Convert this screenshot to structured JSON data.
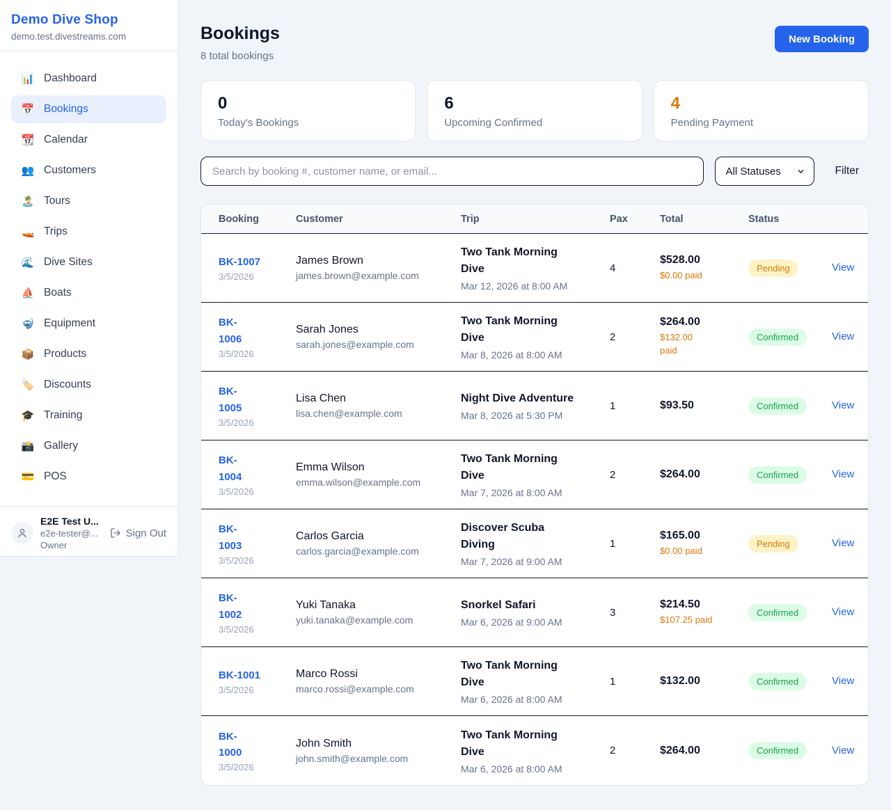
{
  "sidebar": {
    "shop_name": "Demo Dive Shop",
    "shop_domain": "demo.test.divestreams.com",
    "items": [
      {
        "name": "dashboard",
        "icon": "bar-chart-icon",
        "glyph": "📊",
        "label": "Dashboard",
        "active": false
      },
      {
        "name": "bookings",
        "icon": "calendar-icon",
        "glyph": "📅",
        "label": "Bookings",
        "active": true
      },
      {
        "name": "calendar",
        "icon": "tear-off-calendar-icon",
        "glyph": "📆",
        "label": "Calendar",
        "active": false
      },
      {
        "name": "customers",
        "icon": "people-icon",
        "glyph": "👥",
        "label": "Customers",
        "active": false
      },
      {
        "name": "tours",
        "icon": "desert-island-icon",
        "glyph": "🏝️",
        "label": "Tours",
        "active": false
      },
      {
        "name": "trips",
        "icon": "speedboat-icon",
        "glyph": "🚤",
        "label": "Trips",
        "active": false
      },
      {
        "name": "dive-sites",
        "icon": "water-wave-icon",
        "glyph": "🌊",
        "label": "Dive Sites",
        "active": false
      },
      {
        "name": "boats",
        "icon": "sailboat-icon",
        "glyph": "⛵",
        "label": "Boats",
        "active": false
      },
      {
        "name": "equipment",
        "icon": "diving-mask-icon",
        "glyph": "🤿",
        "label": "Equipment",
        "active": false
      },
      {
        "name": "products",
        "icon": "package-icon",
        "glyph": "📦",
        "label": "Products",
        "active": false
      },
      {
        "name": "discounts",
        "icon": "tag-icon",
        "glyph": "🏷️",
        "label": "Discounts",
        "active": false
      },
      {
        "name": "training",
        "icon": "graduation-cap-icon",
        "glyph": "🎓",
        "label": "Training",
        "active": false
      },
      {
        "name": "gallery",
        "icon": "camera-flash-icon",
        "glyph": "📸",
        "label": "Gallery",
        "active": false
      },
      {
        "name": "pos",
        "icon": "credit-card-icon",
        "glyph": "💳",
        "label": "POS",
        "active": false
      }
    ],
    "user": {
      "name": "E2E Test U...",
      "email": "e2e-tester@...",
      "role": "Owner",
      "sign_out_label": "Sign Out"
    }
  },
  "header": {
    "title": "Bookings",
    "subtitle": "8 total bookings",
    "new_booking_label": "New Booking"
  },
  "stats": [
    {
      "value": "0",
      "label": "Today's Bookings",
      "accent": false
    },
    {
      "value": "6",
      "label": "Upcoming Confirmed",
      "accent": false
    },
    {
      "value": "4",
      "label": "Pending Payment",
      "accent": true
    }
  ],
  "filters": {
    "search_placeholder": "Search by booking #, customer name, or email...",
    "status_selected": "All Statuses",
    "filter_label": "Filter"
  },
  "table": {
    "columns": [
      "Booking",
      "Customer",
      "Trip",
      "Pax",
      "Total",
      "Status"
    ],
    "view_label": "View",
    "rows": [
      {
        "id": "BK-1007",
        "date": "3/5/2026",
        "customer": "James Brown",
        "email": "james.brown@example.com",
        "trip": "Two Tank Morning\nDive",
        "trip_time": "Mar 12, 2026 at 8:00 AM",
        "pax": "4",
        "total": "$528.00",
        "paid": "$0.00 paid",
        "status": "Pending"
      },
      {
        "id": "BK-\n1006",
        "date": "3/5/2026",
        "customer": "Sarah Jones",
        "email": "sarah.jones@example.com",
        "trip": "Two Tank Morning\nDive",
        "trip_time": "Mar 8, 2026 at 8:00 AM",
        "pax": "2",
        "total": "$264.00",
        "paid": "$132.00\npaid",
        "status": "Confirmed"
      },
      {
        "id": "BK-\n1005",
        "date": "3/5/2026",
        "customer": "Lisa Chen",
        "email": "lisa.chen@example.com",
        "trip": "Night Dive Adventure",
        "trip_time": "Mar 8, 2026 at 5:30 PM",
        "pax": "1",
        "total": "$93.50",
        "paid": "",
        "status": "Confirmed"
      },
      {
        "id": "BK-\n1004",
        "date": "3/5/2026",
        "customer": "Emma Wilson",
        "email": "emma.wilson@example.com",
        "trip": "Two Tank Morning\nDive",
        "trip_time": "Mar 7, 2026 at 8:00 AM",
        "pax": "2",
        "total": "$264.00",
        "paid": "",
        "status": "Confirmed"
      },
      {
        "id": "BK-\n1003",
        "date": "3/5/2026",
        "customer": "Carlos Garcia",
        "email": "carlos.garcia@example.com",
        "trip": "Discover Scuba\nDiving",
        "trip_time": "Mar 7, 2026 at 9:00 AM",
        "pax": "1",
        "total": "$165.00",
        "paid": "$0.00 paid",
        "status": "Pending"
      },
      {
        "id": "BK-\n1002",
        "date": "3/5/2026",
        "customer": "Yuki Tanaka",
        "email": "yuki.tanaka@example.com",
        "trip": "Snorkel Safari",
        "trip_time": "Mar 6, 2026 at 9:00 AM",
        "pax": "3",
        "total": "$214.50",
        "paid": "$107.25 paid",
        "status": "Confirmed"
      },
      {
        "id": "BK-1001",
        "date": "3/5/2026",
        "customer": "Marco Rossi",
        "email": "marco.rossi@example.com",
        "trip": "Two Tank Morning\nDive",
        "trip_time": "Mar 6, 2026 at 8:00 AM",
        "pax": "1",
        "total": "$132.00",
        "paid": "",
        "status": "Confirmed"
      },
      {
        "id": "BK-\n1000",
        "date": "3/5/2026",
        "customer": "John Smith",
        "email": "john.smith@example.com",
        "trip": "Two Tank Morning\nDive",
        "trip_time": "Mar 6, 2026 at 8:00 AM",
        "pax": "2",
        "total": "$264.00",
        "paid": "",
        "status": "Confirmed"
      }
    ]
  },
  "colors": {
    "brand_blue": "#2563eb",
    "accent_orange": "#d97706",
    "pending_bg": "#fef3c7",
    "pending_text": "#d97706",
    "confirmed_bg": "#dcfce7",
    "confirmed_text": "#16a34a",
    "page_bg": "#f1f5f9",
    "active_nav_bg": "#e8f0fe"
  }
}
